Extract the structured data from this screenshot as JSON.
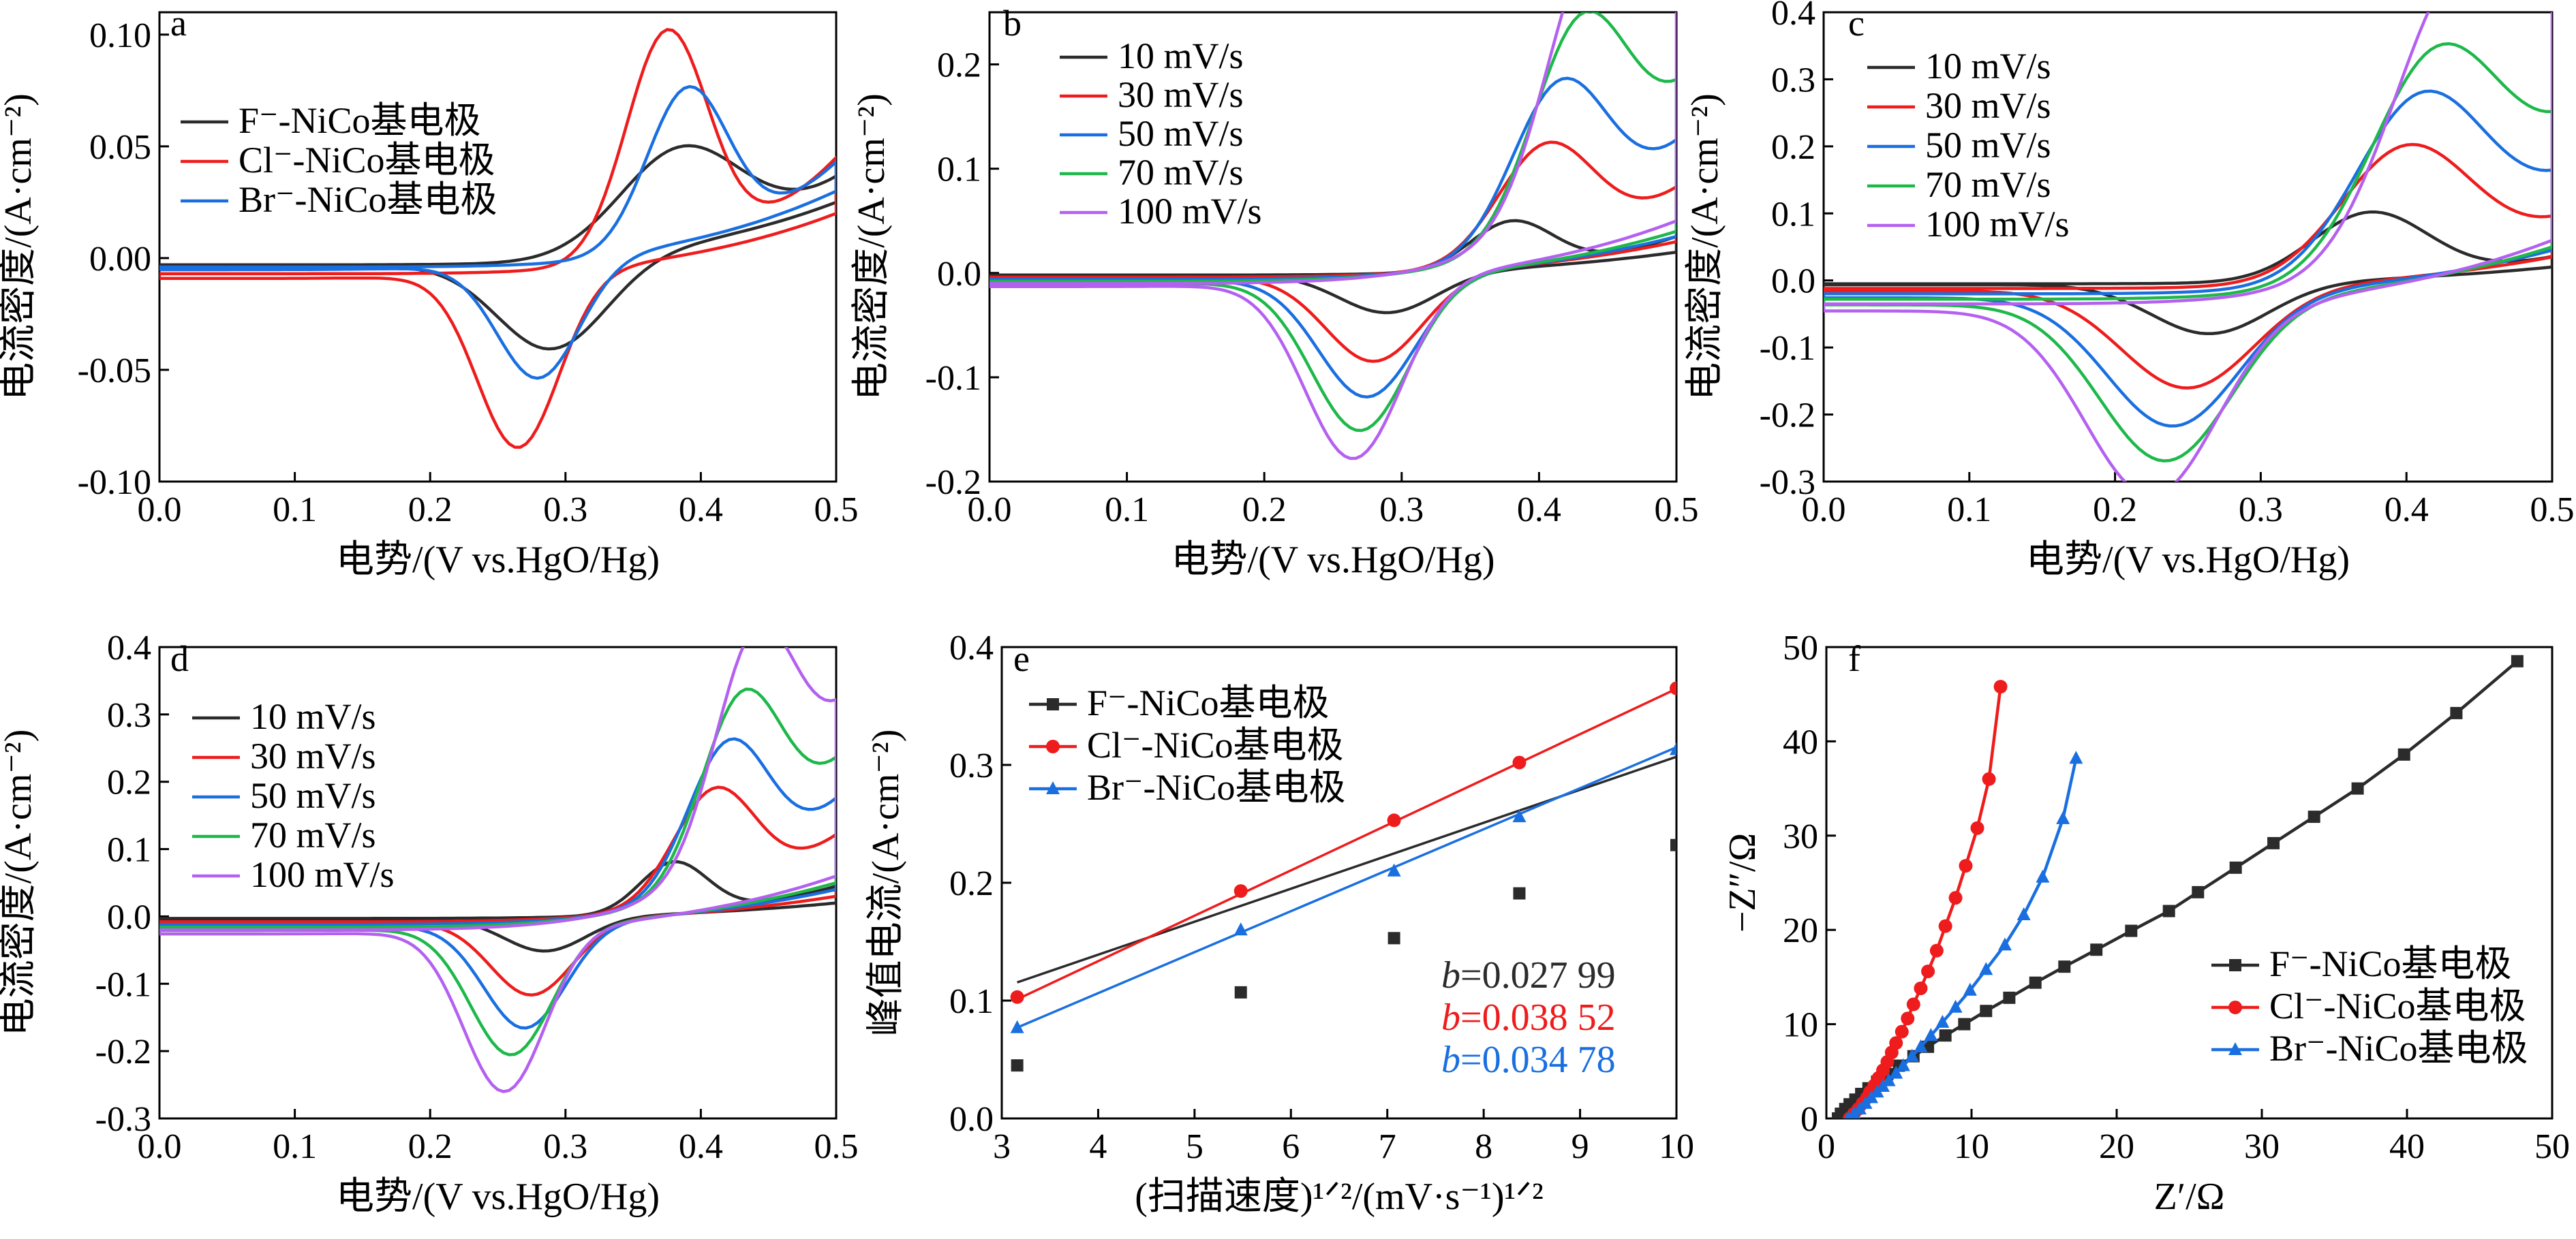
{
  "colors": {
    "black": "#2b2b2b",
    "red": "#ee1c1c",
    "blue": "#1a6fe0",
    "green": "#1eb84a",
    "purple": "#b460f0"
  },
  "chart_data": [
    {
      "id": "a",
      "type": "line",
      "panel_label": "a",
      "xlabel": "电势/(V vs.HgO/Hg)",
      "ylabel": "电流密度/(A·cm⁻²)",
      "xlim": [
        0.0,
        0.5
      ],
      "ylim": [
        -0.1,
        0.11
      ],
      "xticks": [
        0.0,
        0.1,
        0.2,
        0.3,
        0.4,
        0.5
      ],
      "xtick_labels": [
        "0.0",
        "0.1",
        "0.2",
        "0.3",
        "0.4",
        "0.5"
      ],
      "yticks": [
        -0.1,
        -0.05,
        0.0,
        0.05,
        0.1
      ],
      "ytick_labels": [
        "-0.10",
        "-0.05",
        "0.00",
        "0.05",
        "0.10"
      ],
      "legend_position": "upper-left",
      "series": [
        {
          "name": "F⁻-NiCo基电极",
          "color": "#2b2b2b",
          "cv": {
            "ox": [
              0.385,
              0.045,
              0.045
            ],
            "red": [
              0.29,
              -0.04,
              0.04
            ],
            "end_up": 0.035,
            "end_down": 0.025,
            "base_start": -0.003
          }
        },
        {
          "name": "Cl⁻-NiCo基电极",
          "color": "#ee1c1c",
          "cv": {
            "ox": [
              0.375,
              0.1,
              0.03
            ],
            "red": [
              0.265,
              -0.078,
              0.03
            ],
            "end_up": 0.045,
            "end_down": 0.02,
            "base_start": -0.007
          }
        },
        {
          "name": "Br⁻-NiCo基电极",
          "color": "#1a6fe0",
          "cv": {
            "ox": [
              0.39,
              0.07,
              0.03
            ],
            "red": [
              0.28,
              -0.052,
              0.03
            ],
            "end_up": 0.043,
            "end_down": 0.03,
            "base_start": -0.004
          }
        }
      ]
    },
    {
      "id": "b",
      "type": "line",
      "panel_label": "b",
      "xlabel": "电势/(V vs.HgO/Hg)",
      "ylabel": "电流密度/(A·cm⁻²)",
      "xlim": [
        0.0,
        0.5
      ],
      "ylim": [
        -0.2,
        0.25
      ],
      "xticks": [
        0.0,
        0.1,
        0.2,
        0.3,
        0.4,
        0.5
      ],
      "xtick_labels": [
        "0.0",
        "0.1",
        "0.2",
        "0.3",
        "0.4",
        "0.5"
      ],
      "yticks": [
        -0.2,
        -0.1,
        0.0,
        0.1,
        0.2
      ],
      "ytick_labels": [
        "-0.2",
        "-0.1",
        "0.0",
        "0.1",
        "0.2"
      ],
      "legend_position": "upper-left",
      "series": [
        {
          "name": "10 mV/s",
          "color": "#2b2b2b",
          "cv": {
            "ox": [
              0.38,
              0.045,
              0.03
            ],
            "red": [
              0.29,
              -0.038,
              0.035
            ],
            "end_up": 0.035,
            "end_down": 0.02,
            "base_start": -0.002
          }
        },
        {
          "name": "30 mV/s",
          "color": "#ee1c1c",
          "cv": {
            "ox": [
              0.405,
              0.105,
              0.035
            ],
            "red": [
              0.28,
              -0.083,
              0.035
            ],
            "end_up": 0.08,
            "end_down": 0.03,
            "base_start": -0.004
          }
        },
        {
          "name": "50 mV/s",
          "color": "#1a6fe0",
          "cv": {
            "ox": [
              0.415,
              0.15,
              0.035
            ],
            "red": [
              0.275,
              -0.115,
              0.035
            ],
            "end_up": 0.12,
            "end_down": 0.035,
            "base_start": -0.006
          }
        },
        {
          "name": "70 mV/s",
          "color": "#1eb84a",
          "cv": {
            "ox": [
              0.43,
              0.188,
              0.035
            ],
            "red": [
              0.27,
              -0.145,
              0.035
            ],
            "end_up": 0.16,
            "end_down": 0.04,
            "base_start": -0.008
          }
        },
        {
          "name": "100 mV/s",
          "color": "#b460f0",
          "cv": {
            "ox": [
              0.44,
              0.228,
              0.035
            ],
            "red": [
              0.265,
              -0.17,
              0.035
            ],
            "end_up": 0.215,
            "end_down": 0.05,
            "base_start": -0.01
          }
        }
      ]
    },
    {
      "id": "c",
      "type": "line",
      "panel_label": "c",
      "xlabel": "电势/(V vs.HgO/Hg)",
      "ylabel": "电流密度/(A·cm⁻²)",
      "xlim": [
        0.0,
        0.5
      ],
      "ylim": [
        -0.3,
        0.4
      ],
      "xticks": [
        0.0,
        0.1,
        0.2,
        0.3,
        0.4,
        0.5
      ],
      "xtick_labels": [
        "0.0",
        "0.1",
        "0.2",
        "0.3",
        "0.4",
        "0.5"
      ],
      "yticks": [
        -0.3,
        -0.2,
        -0.1,
        0.0,
        0.1,
        0.2,
        0.3,
        0.4
      ],
      "ytick_labels": [
        "-0.3",
        "-0.2",
        "-0.1",
        "0.0",
        "0.1",
        "0.2",
        "0.3",
        "0.4"
      ],
      "legend_position": "upper-left",
      "series": [
        {
          "name": "10 mV/s",
          "color": "#2b2b2b",
          "cv": {
            "ox": [
              0.375,
              0.1,
              0.04
            ],
            "red": [
              0.265,
              -0.075,
              0.04
            ],
            "end_up": 0.035,
            "end_down": 0.02,
            "base_start": -0.005
          }
        },
        {
          "name": "30 mV/s",
          "color": "#ee1c1c",
          "cv": {
            "ox": [
              0.4,
              0.19,
              0.045
            ],
            "red": [
              0.25,
              -0.148,
              0.045
            ],
            "end_up": 0.08,
            "end_down": 0.035,
            "base_start": -0.012
          }
        },
        {
          "name": "50 mV/s",
          "color": "#1a6fe0",
          "cv": {
            "ox": [
              0.41,
              0.255,
              0.045
            ],
            "red": [
              0.24,
              -0.195,
              0.045
            ],
            "end_up": 0.13,
            "end_down": 0.045,
            "base_start": -0.02
          }
        },
        {
          "name": "70 mV/s",
          "color": "#1eb84a",
          "cv": {
            "ox": [
              0.42,
              0.3,
              0.045
            ],
            "red": [
              0.235,
              -0.237,
              0.045
            ],
            "end_up": 0.19,
            "end_down": 0.05,
            "base_start": -0.028
          }
        },
        {
          "name": "100 mV/s",
          "color": "#b460f0",
          "cv": {
            "ox": [
              0.435,
              0.36,
              0.045
            ],
            "red": [
              0.225,
              -0.28,
              0.045
            ],
            "end_up": 0.3,
            "end_down": 0.06,
            "base_start": -0.035
          }
        }
      ]
    },
    {
      "id": "d",
      "type": "line",
      "panel_label": "d",
      "xlabel": "电势/(V vs.HgO/Hg)",
      "ylabel": "电流密度/(A·cm⁻²)",
      "xlim": [
        0.0,
        0.5
      ],
      "ylim": [
        -0.3,
        0.4
      ],
      "xticks": [
        0.0,
        0.1,
        0.2,
        0.3,
        0.4,
        0.5
      ],
      "xtick_labels": [
        "0.0",
        "0.1",
        "0.2",
        "0.3",
        "0.4",
        "0.5"
      ],
      "yticks": [
        -0.3,
        -0.2,
        -0.1,
        0.0,
        0.1,
        0.2,
        0.3,
        0.4
      ],
      "ytick_labels": [
        "-0.3",
        "-0.2",
        "-0.1",
        "0.0",
        "0.1",
        "0.2",
        "0.3",
        "0.4"
      ],
      "legend_position": "upper-left",
      "series": [
        {
          "name": "10 mV/s",
          "color": "#2b2b2b",
          "cv": {
            "ox": [
              0.38,
              0.075,
              0.025
            ],
            "red": [
              0.285,
              -0.05,
              0.03
            ],
            "end_up": 0.045,
            "end_down": 0.02,
            "base_start": -0.003
          }
        },
        {
          "name": "30 mV/s",
          "color": "#ee1c1c",
          "cv": {
            "ox": [
              0.41,
              0.16,
              0.03
            ],
            "red": [
              0.275,
              -0.11,
              0.03
            ],
            "end_up": 0.12,
            "end_down": 0.03,
            "base_start": -0.008
          }
        },
        {
          "name": "50 mV/s",
          "color": "#1a6fe0",
          "cv": {
            "ox": [
              0.42,
              0.21,
              0.03
            ],
            "red": [
              0.27,
              -0.155,
              0.03
            ],
            "end_up": 0.17,
            "end_down": 0.04,
            "base_start": -0.012
          }
        },
        {
          "name": "70 mV/s",
          "color": "#1eb84a",
          "cv": {
            "ox": [
              0.43,
              0.255,
              0.03
            ],
            "red": [
              0.26,
              -0.19,
              0.03
            ],
            "end_up": 0.22,
            "end_down": 0.05,
            "base_start": -0.016
          }
        },
        {
          "name": "100 mV/s",
          "color": "#b460f0",
          "cv": {
            "ox": [
              0.44,
              0.31,
              0.03
            ],
            "red": [
              0.255,
              -0.24,
              0.03
            ],
            "end_up": 0.28,
            "end_down": 0.06,
            "base_start": -0.02
          }
        }
      ]
    },
    {
      "id": "e",
      "type": "scatter",
      "panel_label": "e",
      "xlabel": "(扫描速度)¹ᐟ²/(mV·s⁻¹)¹ᐟ²",
      "ylabel": "峰值电流/(A·cm⁻²)",
      "xlim": [
        3,
        10
      ],
      "ylim": [
        0.0,
        0.4
      ],
      "xticks": [
        3,
        4,
        5,
        6,
        7,
        8,
        9,
        10
      ],
      "xtick_labels": [
        "3",
        "4",
        "5",
        "6",
        "7",
        "8",
        "9",
        "10"
      ],
      "yticks": [
        0.0,
        0.1,
        0.2,
        0.3,
        0.4
      ],
      "ytick_labels": [
        "0.0",
        "0.1",
        "0.2",
        "0.3",
        "0.4"
      ],
      "legend_position": "upper-left",
      "series": [
        {
          "name": "F⁻-NiCo基电极",
          "color": "#2b2b2b",
          "marker": "square",
          "x": [
            3.16,
            5.48,
            7.07,
            8.37,
            10.0
          ],
          "y": [
            0.045,
            0.107,
            0.153,
            0.191,
            0.232
          ],
          "fit": [
            0.027,
            0.02799
          ]
        },
        {
          "name": "Cl⁻-NiCo基电极",
          "color": "#ee1c1c",
          "marker": "circle",
          "x": [
            3.16,
            5.48,
            7.07,
            8.37,
            10.0
          ],
          "y": [
            0.103,
            0.193,
            0.253,
            0.302,
            0.365
          ],
          "fit": [
            -0.0206,
            0.03852
          ]
        },
        {
          "name": "Br⁻-NiCo基电极",
          "color": "#1a6fe0",
          "marker": "triangle",
          "x": [
            3.16,
            5.48,
            7.07,
            8.37,
            10.0
          ],
          "y": [
            0.077,
            0.16,
            0.21,
            0.256,
            0.313
          ],
          "fit": [
            -0.0328,
            0.03478
          ]
        }
      ],
      "annotations": [
        {
          "var": "b",
          "text": "=0.027 99",
          "color": "#2b2b2b"
        },
        {
          "var": "b",
          "text": "=0.038 52",
          "color": "#ee1c1c"
        },
        {
          "var": "b",
          "text": "=0.034 78",
          "color": "#1a6fe0"
        }
      ]
    },
    {
      "id": "f",
      "type": "scatter",
      "panel_label": "f",
      "xlabel": "Z′/Ω",
      "ylabel": "−Z″/Ω",
      "xlim": [
        0,
        50
      ],
      "ylim": [
        0,
        50
      ],
      "xticks": [
        0,
        10,
        20,
        30,
        40,
        50
      ],
      "xtick_labels": [
        "0",
        "10",
        "20",
        "30",
        "40",
        "50"
      ],
      "yticks": [
        0,
        10,
        20,
        30,
        40,
        50
      ],
      "ytick_labels": [
        "0",
        "10",
        "20",
        "30",
        "40",
        "50"
      ],
      "legend_position": "lower-right",
      "series": [
        {
          "name": "F⁻-NiCo基电极",
          "color": "#2b2b2b",
          "marker": "square",
          "x": [
            0.8,
            1.0,
            1.3,
            1.6,
            2.0,
            2.4,
            2.9,
            3.5,
            4.2,
            5.0,
            6.0,
            7.0,
            8.2,
            9.5,
            11.0,
            12.6,
            14.4,
            16.4,
            18.6,
            21.0,
            23.6,
            25.6,
            28.2,
            30.8,
            33.6,
            36.6,
            39.8,
            43.4,
            47.6
          ],
          "y": [
            0.0,
            0.5,
            1.0,
            1.5,
            2.0,
            2.6,
            3.2,
            3.9,
            4.7,
            5.6,
            6.6,
            7.6,
            8.8,
            10.0,
            11.4,
            12.8,
            14.4,
            16.1,
            17.9,
            19.9,
            22.0,
            24.0,
            26.6,
            29.2,
            32.0,
            35.0,
            38.6,
            43.0,
            48.5
          ]
        },
        {
          "name": "Cl⁻-NiCo基电极",
          "color": "#ee1c1c",
          "marker": "circle",
          "x": [
            1.6,
            1.9,
            2.2,
            2.5,
            2.8,
            3.0,
            3.3,
            3.6,
            3.9,
            4.2,
            4.5,
            4.8,
            5.2,
            5.6,
            6.0,
            6.5,
            7.0,
            7.6,
            8.2,
            8.9,
            9.6,
            10.4,
            11.2,
            12.0
          ],
          "y": [
            0.0,
            0.5,
            1.0,
            1.6,
            2.2,
            2.8,
            3.5,
            4.3,
            5.1,
            6.0,
            7.0,
            8.0,
            9.2,
            10.6,
            12.1,
            13.8,
            15.6,
            17.8,
            20.4,
            23.4,
            26.8,
            30.8,
            36.0,
            45.8
          ]
        },
        {
          "name": "Br⁻-NiCo基电极",
          "color": "#1a6fe0",
          "marker": "triangle",
          "x": [
            1.5,
            1.9,
            2.3,
            2.7,
            3.1,
            3.5,
            3.9,
            4.3,
            4.8,
            5.3,
            5.9,
            6.5,
            7.2,
            8.0,
            8.9,
            9.9,
            11.0,
            12.3,
            13.6,
            14.9,
            16.3,
            17.2
          ],
          "y": [
            0.0,
            0.5,
            1.0,
            1.6,
            2.2,
            2.8,
            3.4,
            4.0,
            4.8,
            5.6,
            6.6,
            7.6,
            8.8,
            10.2,
            11.8,
            13.6,
            15.8,
            18.4,
            21.6,
            25.6,
            31.8,
            38.2
          ]
        }
      ]
    }
  ]
}
